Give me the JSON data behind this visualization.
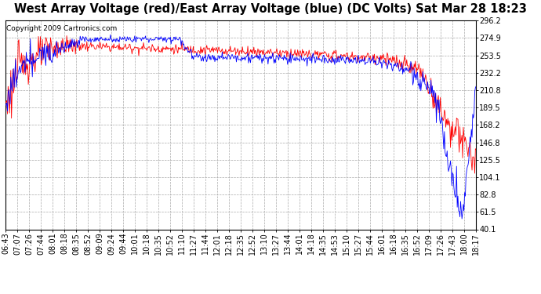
{
  "title": "West Array Voltage (red)/East Array Voltage (blue) (DC Volts) Sat Mar 28 18:23",
  "copyright_text": "Copyright 2009 Cartronics.com",
  "y_min": 40.1,
  "y_max": 296.2,
  "y_ticks": [
    40.1,
    61.5,
    82.8,
    104.1,
    125.5,
    146.8,
    168.2,
    189.5,
    210.8,
    232.2,
    253.5,
    274.9,
    296.2
  ],
  "x_labels": [
    "06:43",
    "07:07",
    "07:26",
    "07:44",
    "08:01",
    "08:18",
    "08:35",
    "08:52",
    "09:09",
    "09:24",
    "09:44",
    "10:01",
    "10:18",
    "10:35",
    "10:52",
    "11:10",
    "11:27",
    "11:44",
    "12:01",
    "12:18",
    "12:35",
    "12:52",
    "13:10",
    "13:27",
    "13:44",
    "14:01",
    "14:18",
    "14:35",
    "14:53",
    "15:10",
    "15:27",
    "15:44",
    "16:01",
    "16:18",
    "16:35",
    "16:52",
    "17:09",
    "17:26",
    "17:43",
    "18:00",
    "18:17"
  ],
  "background_color": "#ffffff",
  "plot_bg_color": "#ffffff",
  "grid_color": "#aaaaaa",
  "red_color": "#ff0000",
  "blue_color": "#0000ff",
  "title_fontsize": 10.5,
  "tick_fontsize": 7,
  "copyright_fontsize": 6.5
}
